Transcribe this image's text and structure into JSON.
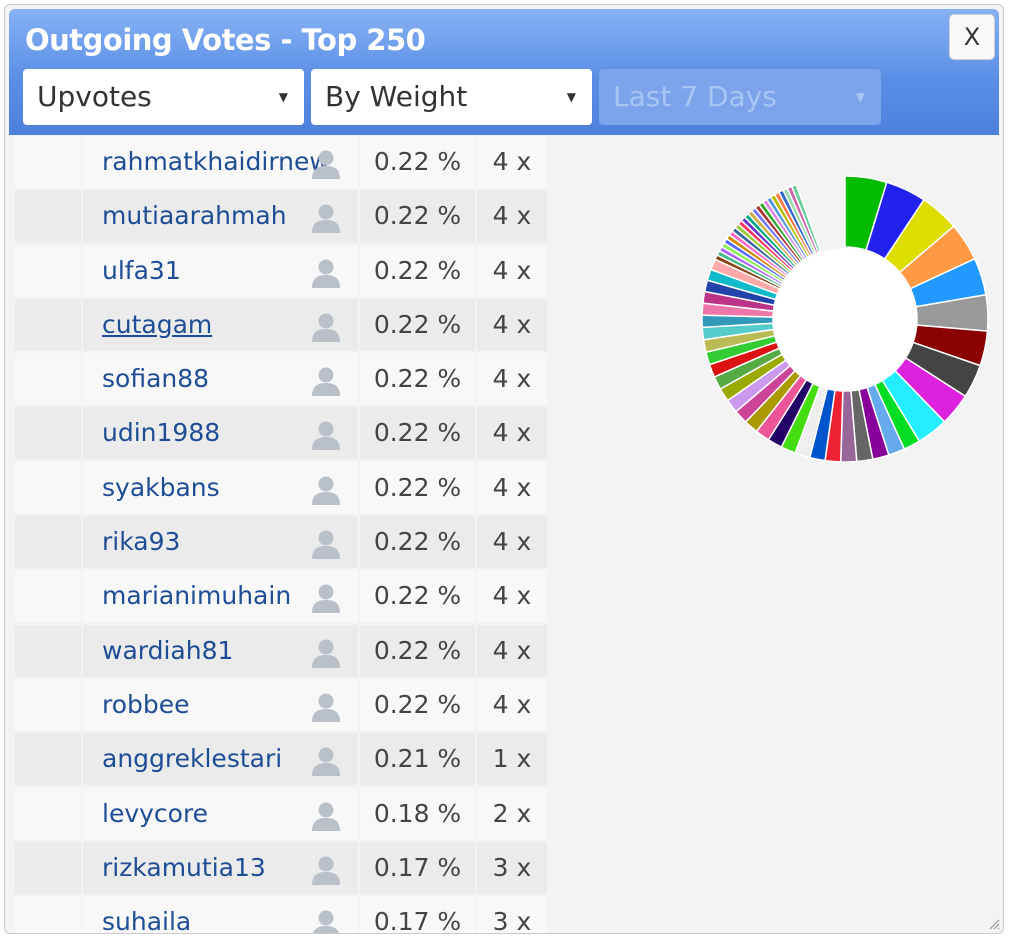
{
  "dialog": {
    "title": "Outgoing Votes - Top 250",
    "close_label": "X"
  },
  "filters": {
    "vote_type": "Upvotes",
    "sort": "By Weight",
    "period": "Last 7 Days"
  },
  "rows": [
    {
      "name": "rahmatkhaidirnew",
      "pct": "0.22 %",
      "count": "4 x"
    },
    {
      "name": "mutiaarahmah",
      "pct": "0.22 %",
      "count": "4 x"
    },
    {
      "name": "ulfa31",
      "pct": "0.22 %",
      "count": "4 x"
    },
    {
      "name": "cutagam",
      "pct": "0.22 %",
      "count": "4 x"
    },
    {
      "name": "sofian88",
      "pct": "0.22 %",
      "count": "4 x"
    },
    {
      "name": "udin1988",
      "pct": "0.22 %",
      "count": "4 x"
    },
    {
      "name": "syakbans",
      "pct": "0.22 %",
      "count": "4 x"
    },
    {
      "name": "rika93",
      "pct": "0.22 %",
      "count": "4 x"
    },
    {
      "name": "marianimuhain",
      "pct": "0.22 %",
      "count": "4 x"
    },
    {
      "name": "wardiah81",
      "pct": "0.22 %",
      "count": "4 x"
    },
    {
      "name": "robbee",
      "pct": "0.22 %",
      "count": "4 x"
    },
    {
      "name": "anggreklestari",
      "pct": "0.21 %",
      "count": "1 x"
    },
    {
      "name": "levycore",
      "pct": "0.18 %",
      "count": "2 x"
    },
    {
      "name": "rizkamutia13",
      "pct": "0.17 %",
      "count": "3 x"
    },
    {
      "name": "suhaila",
      "pct": "0.17 %",
      "count": "3 x"
    }
  ],
  "donut_colors": [
    "#00bb00",
    "#2222ee",
    "#dddd00",
    "#ff9944",
    "#2299ff",
    "#999999",
    "#8b0000",
    "#444444",
    "#dd22dd",
    "#22eeff",
    "#00dd22",
    "#66aaee",
    "#880099",
    "#666666",
    "#996699",
    "#ee2233",
    "#0055cc",
    "#eeeeee",
    "#44dd11",
    "#220066",
    "#ee5599",
    "#aa9900",
    "#cc4499",
    "#cc99ee",
    "#99aa00",
    "#55aa44",
    "#dd1111",
    "#33cc33",
    "#bbbb55",
    "#55cccc",
    "#3399bb",
    "#ee77aa",
    "#bb3388",
    "#2244aa",
    "#11bbcc",
    "#ffaaaa",
    "#884411",
    "#44bb88",
    "#aa66ff",
    "#88ee55",
    "#5566ff",
    "#cc8800",
    "#ff66cc",
    "#336699",
    "#99cc33",
    "#ff3366",
    "#6633cc",
    "#00aa88",
    "#ccaa44",
    "#7777ff",
    "#aa3333",
    "#33aa33",
    "#dd88dd",
    "#5599dd",
    "#bbbb00",
    "#ff7744",
    "#3366cc",
    "#99ddaa",
    "#cc66aa",
    "#66cc99"
  ]
}
